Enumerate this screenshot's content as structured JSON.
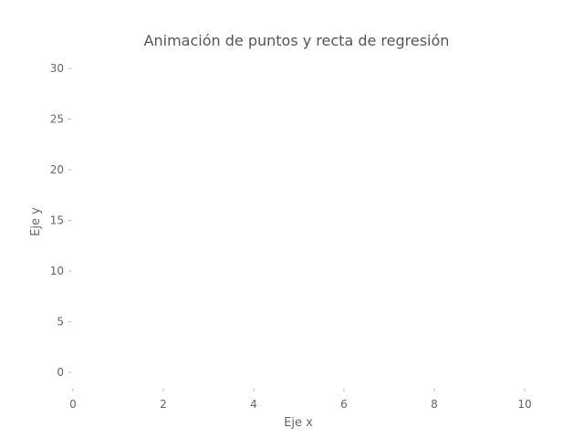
{
  "chart_data": {
    "type": "scatter",
    "title": "Animación de puntos y recta de regresión",
    "xlabel": "Eje x",
    "ylabel": "Eje y",
    "xlim": [
      -0.2,
      10.2
    ],
    "ylim": [
      -1.5,
      31
    ],
    "x_ticks": [
      0,
      2,
      4,
      6,
      8,
      10
    ],
    "y_ticks": [
      0,
      5,
      10,
      15,
      20,
      25,
      30
    ],
    "series": [],
    "grid": false,
    "legend": "none"
  },
  "colors": {
    "text": "#666666",
    "title": "#555555",
    "ticks": "#bbbbbb"
  }
}
